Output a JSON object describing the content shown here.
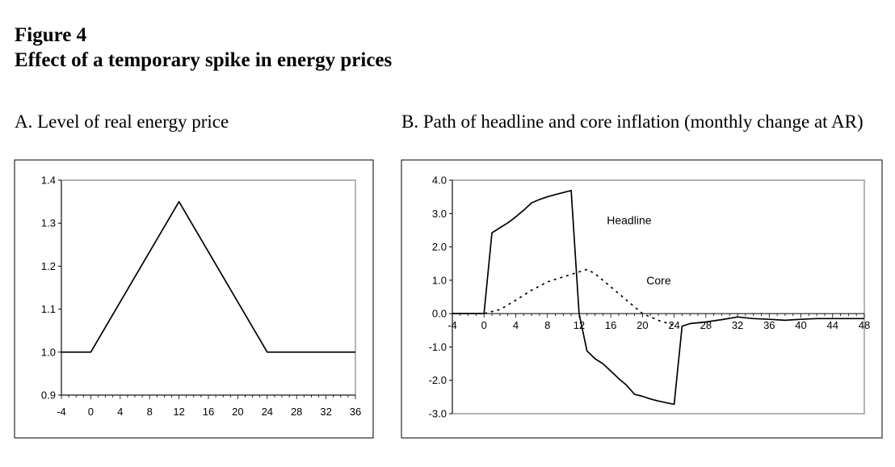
{
  "figure": {
    "title_line1": "Figure 4",
    "title_line2": "Effect of a temporary spike in energy prices"
  },
  "chart_data": [
    {
      "type": "line",
      "title": "A.  Level of real energy price",
      "xlabel": "",
      "ylabel": "",
      "xlim": [
        -4,
        36
      ],
      "ylim": [
        0.9,
        1.4
      ],
      "xticks": [
        -4,
        0,
        4,
        8,
        12,
        16,
        20,
        24,
        28,
        32,
        36
      ],
      "yticks": [
        "0.9",
        "1.0",
        "1.1",
        "1.2",
        "1.3",
        "1.4"
      ],
      "grid": false,
      "series": [
        {
          "x": [
            -4,
            0,
            12,
            24,
            36
          ],
          "y": [
            1.0,
            1.0,
            1.35,
            1.0,
            1.0
          ],
          "style": "solid"
        }
      ]
    },
    {
      "type": "line",
      "title": "B.  Path of headline and core inflation (monthly change at AR)",
      "xlabel": "",
      "ylabel": "",
      "xlim": [
        -4,
        48
      ],
      "ylim": [
        -3.0,
        4.0
      ],
      "xticks": [
        -4,
        0,
        4,
        8,
        12,
        16,
        20,
        24,
        28,
        32,
        36,
        40,
        44,
        48
      ],
      "yticks": [
        "4.0",
        "3.0",
        "2.0",
        "1.0",
        "0.0",
        "-1.0",
        "-2.0",
        "-3.0"
      ],
      "grid": false,
      "series": [
        {
          "name": "Headline",
          "style": "solid",
          "x": [
            -4,
            0,
            1,
            2,
            3,
            4,
            5,
            6,
            7,
            8,
            9,
            10,
            11,
            12,
            13,
            14,
            15,
            16,
            17,
            18,
            19,
            20,
            21,
            22,
            23,
            24,
            25,
            26,
            28,
            30,
            32,
            34,
            36,
            38,
            40,
            42,
            44,
            46,
            48
          ],
          "y": [
            0.0,
            0.0,
            2.42,
            2.57,
            2.72,
            2.9,
            3.1,
            3.32,
            3.42,
            3.5,
            3.57,
            3.63,
            3.69,
            0.0,
            -1.12,
            -1.35,
            -1.5,
            -1.72,
            -1.95,
            -2.15,
            -2.42,
            -2.48,
            -2.56,
            -2.62,
            -2.67,
            -2.72,
            -0.38,
            -0.3,
            -0.25,
            -0.18,
            -0.1,
            -0.15,
            -0.17,
            -0.2,
            -0.17,
            -0.15,
            -0.15,
            -0.15,
            -0.15
          ]
        },
        {
          "name": "Core",
          "style": "dashed",
          "x": [
            -4,
            0,
            2,
            4,
            6,
            8,
            10,
            12,
            13,
            14,
            16,
            18,
            20,
            22,
            24
          ],
          "y": [
            0.0,
            0.0,
            0.12,
            0.4,
            0.7,
            0.95,
            1.1,
            1.25,
            1.32,
            1.2,
            0.8,
            0.4,
            0.0,
            -0.2,
            -0.35
          ]
        }
      ],
      "annotations": [
        {
          "text": "Headline",
          "x": 15.5,
          "y": 2.8
        },
        {
          "text": "Core",
          "x": 20.5,
          "y": 1.0
        }
      ]
    }
  ]
}
